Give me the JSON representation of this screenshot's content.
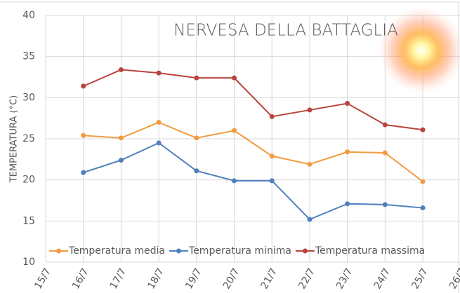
{
  "chart_data": {
    "type": "line",
    "title": "NERVESA DELLA BATTAGLIA",
    "y_label": "TEMPERATURA (°C)",
    "categories": [
      "15/7",
      "16/7",
      "17/7",
      "18/7",
      "19/7",
      "20/7",
      "21/7",
      "22/7",
      "23/7",
      "24/7",
      "25/7",
      "26/7"
    ],
    "series": [
      {
        "name": "Temperatura media",
        "color": "#f29b3f",
        "values": [
          null,
          25.4,
          25.1,
          27.0,
          25.1,
          26.0,
          22.9,
          21.9,
          23.4,
          23.3,
          19.8,
          null
        ]
      },
      {
        "name": "Temperatura minima",
        "color": "#4f7fbe",
        "values": [
          null,
          20.9,
          22.4,
          24.5,
          21.1,
          19.9,
          19.9,
          15.2,
          17.1,
          17.0,
          16.6,
          null
        ]
      },
      {
        "name": "Temperatura massima",
        "color": "#b9443e",
        "values": [
          null,
          31.4,
          33.4,
          33.0,
          32.4,
          32.4,
          27.7,
          28.5,
          29.3,
          26.7,
          26.1,
          null
        ]
      }
    ],
    "ylim": [
      10,
      40
    ],
    "yticks": [
      10,
      15,
      20,
      25,
      30,
      35,
      40
    ],
    "grid": true,
    "legend": "bottom"
  }
}
